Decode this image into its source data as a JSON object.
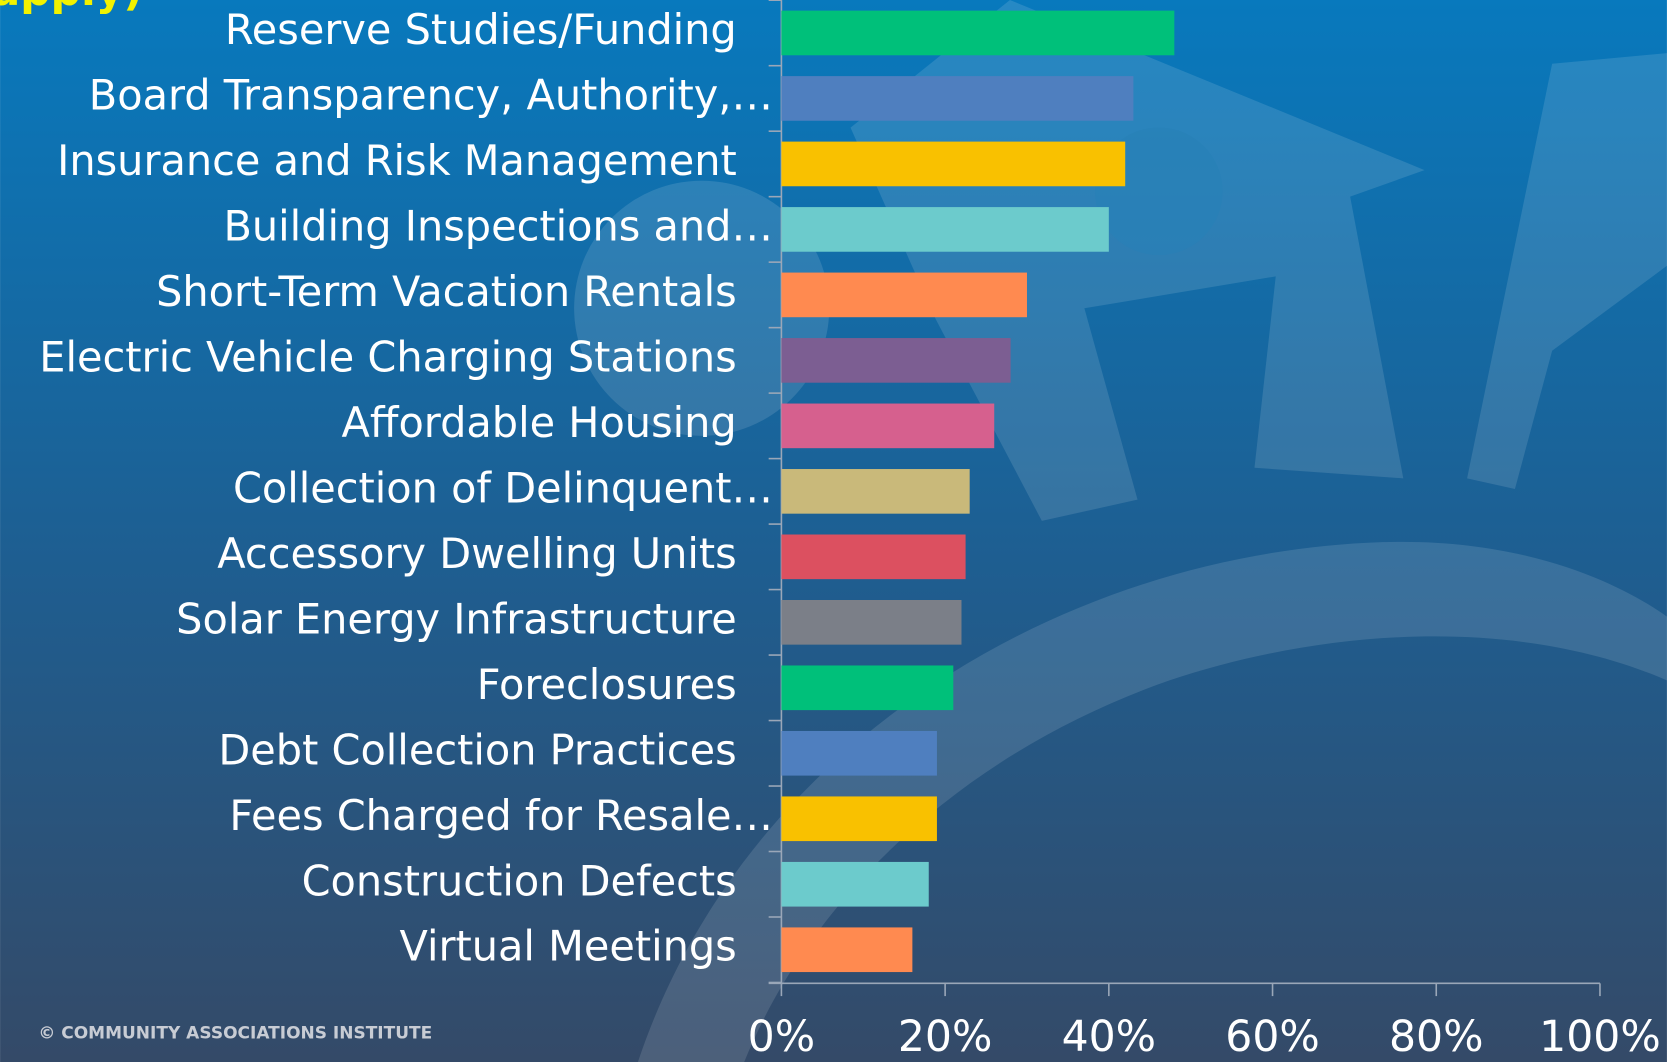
{
  "chart_data": {
    "type": "bar",
    "orientation": "horizontal",
    "title": "apply)",
    "categories": [
      "Reserve Studies/Funding",
      "Board Transparency, Authority,…",
      "Insurance and Risk Management",
      "Building Inspections and…",
      "Short-Term Vacation Rentals",
      "Electric Vehicle Charging Stations",
      "Affordable Housing",
      "Collection of Delinquent…",
      "Accessory Dwelling Units",
      "Solar Energy Infrastructure",
      "Foreclosures",
      "Debt Collection Practices",
      "Fees Charged for Resale…",
      "Construction Defects",
      "Virtual Meetings"
    ],
    "values": [
      48,
      43,
      42,
      40,
      30,
      28,
      26,
      23,
      22.5,
      22,
      21,
      19,
      19,
      18,
      16
    ],
    "colors": [
      "#00c07a",
      "#4f7fbf",
      "#f9c100",
      "#6ccbcc",
      "#ff8a50",
      "#7c5e92",
      "#d6608e",
      "#c9b97a",
      "#dc5060",
      "#7b7f88",
      "#00c07a",
      "#4f7fbf",
      "#f9c100",
      "#6ccbcc",
      "#ff8a50"
    ],
    "xlim": [
      0,
      100
    ],
    "xticks": [
      {
        "value": 0,
        "label": "0%"
      },
      {
        "value": 20,
        "label": "20%"
      },
      {
        "value": 40,
        "label": "40%"
      },
      {
        "value": 60,
        "label": "60%"
      },
      {
        "value": 80,
        "label": "80%"
      },
      {
        "value": 100,
        "label": "100%"
      }
    ],
    "footer": "© COMMUNITY ASSOCIATIONS INSTITUTE"
  }
}
